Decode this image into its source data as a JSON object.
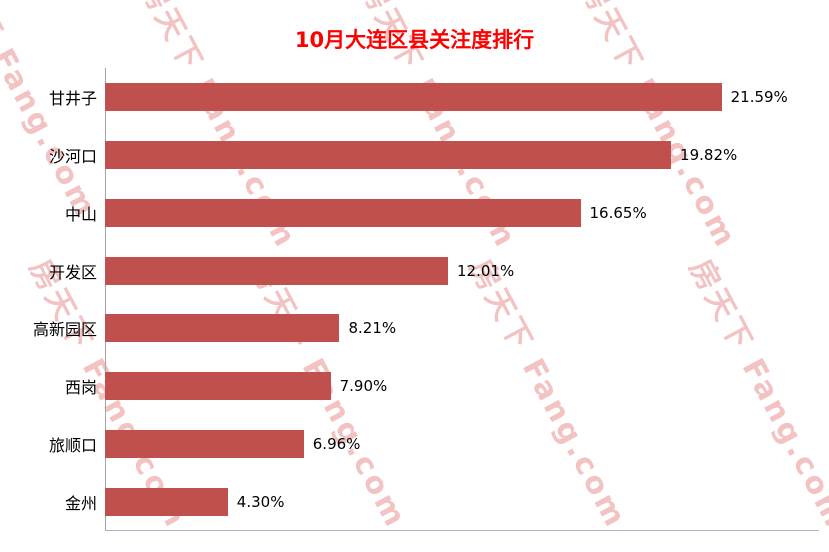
{
  "title": "10月大连区县关注度排行",
  "watermark": {
    "text": "房天下 Fang.com"
  },
  "colors": {
    "bar": "#c0504d",
    "title": "#ff0000",
    "watermark": "#e47878",
    "axis": "#a6a6a6"
  },
  "chart_data": {
    "type": "bar",
    "orientation": "horizontal",
    "title": "10月大连区县关注度排行",
    "categories": [
      "甘井子",
      "沙河口",
      "中山",
      "开发区",
      "高新园区",
      "西岗",
      "旅顺口",
      "金州"
    ],
    "values": [
      21.59,
      19.82,
      16.65,
      12.01,
      8.21,
      7.9,
      6.96,
      4.3
    ],
    "labels": [
      "21.59%",
      "19.82%",
      "16.65%",
      "12.01%",
      "8.21%",
      "7.90%",
      "6.96%",
      "4.30%"
    ],
    "xlabel": "",
    "ylabel": "",
    "xlim": [
      0,
      25
    ],
    "grid": false,
    "legend": "none",
    "bar_color": "#c0504d"
  }
}
